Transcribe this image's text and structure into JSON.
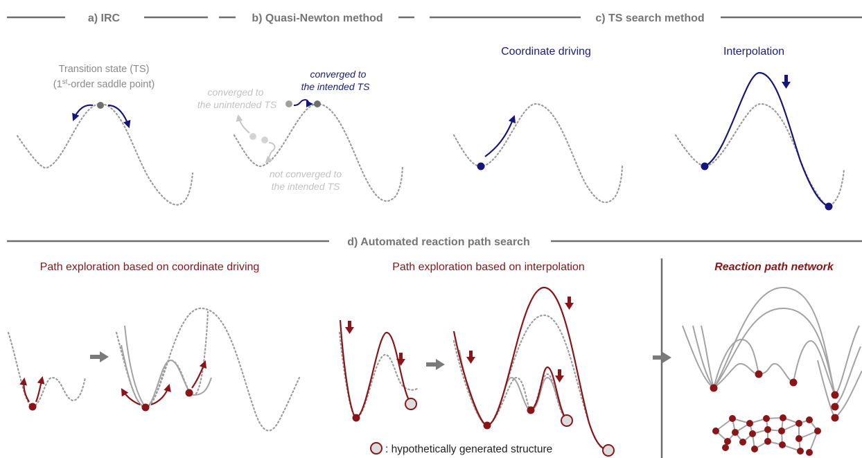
{
  "headers": {
    "irc": "a) IRC",
    "quasi_newton": "b) Quasi-Newton method",
    "ts_search": "c) TS search method",
    "automated": "d) Automated reaction path search"
  },
  "irc": {
    "ts_label_line1": "Transition state (TS)",
    "ts_label_prefix": "(1",
    "ts_label_sup": "st",
    "ts_label_suffix": "-order saddle point)"
  },
  "quasi_newton": {
    "unintended_line1": "converged to",
    "unintended_line2": "the unintended TS",
    "intended_line1": "converged to",
    "intended_line2": "the intended TS",
    "not_converged_line1": "not converged to",
    "not_converged_line2": "the intended TS"
  },
  "ts_search": {
    "coordinate_driving": "Coordinate driving",
    "interpolation": "Interpolation"
  },
  "automated": {
    "path_coord": "Path exploration based on coordinate driving",
    "path_interp": "Path exploration based on interpolation",
    "network": "Reaction path network",
    "legend": ": hypothetically generated structure"
  },
  "colors": {
    "header_gray": "#757575",
    "blue": "#16167a",
    "dark_red": "#8b1418",
    "curve_gray": "#a3a3a3"
  }
}
